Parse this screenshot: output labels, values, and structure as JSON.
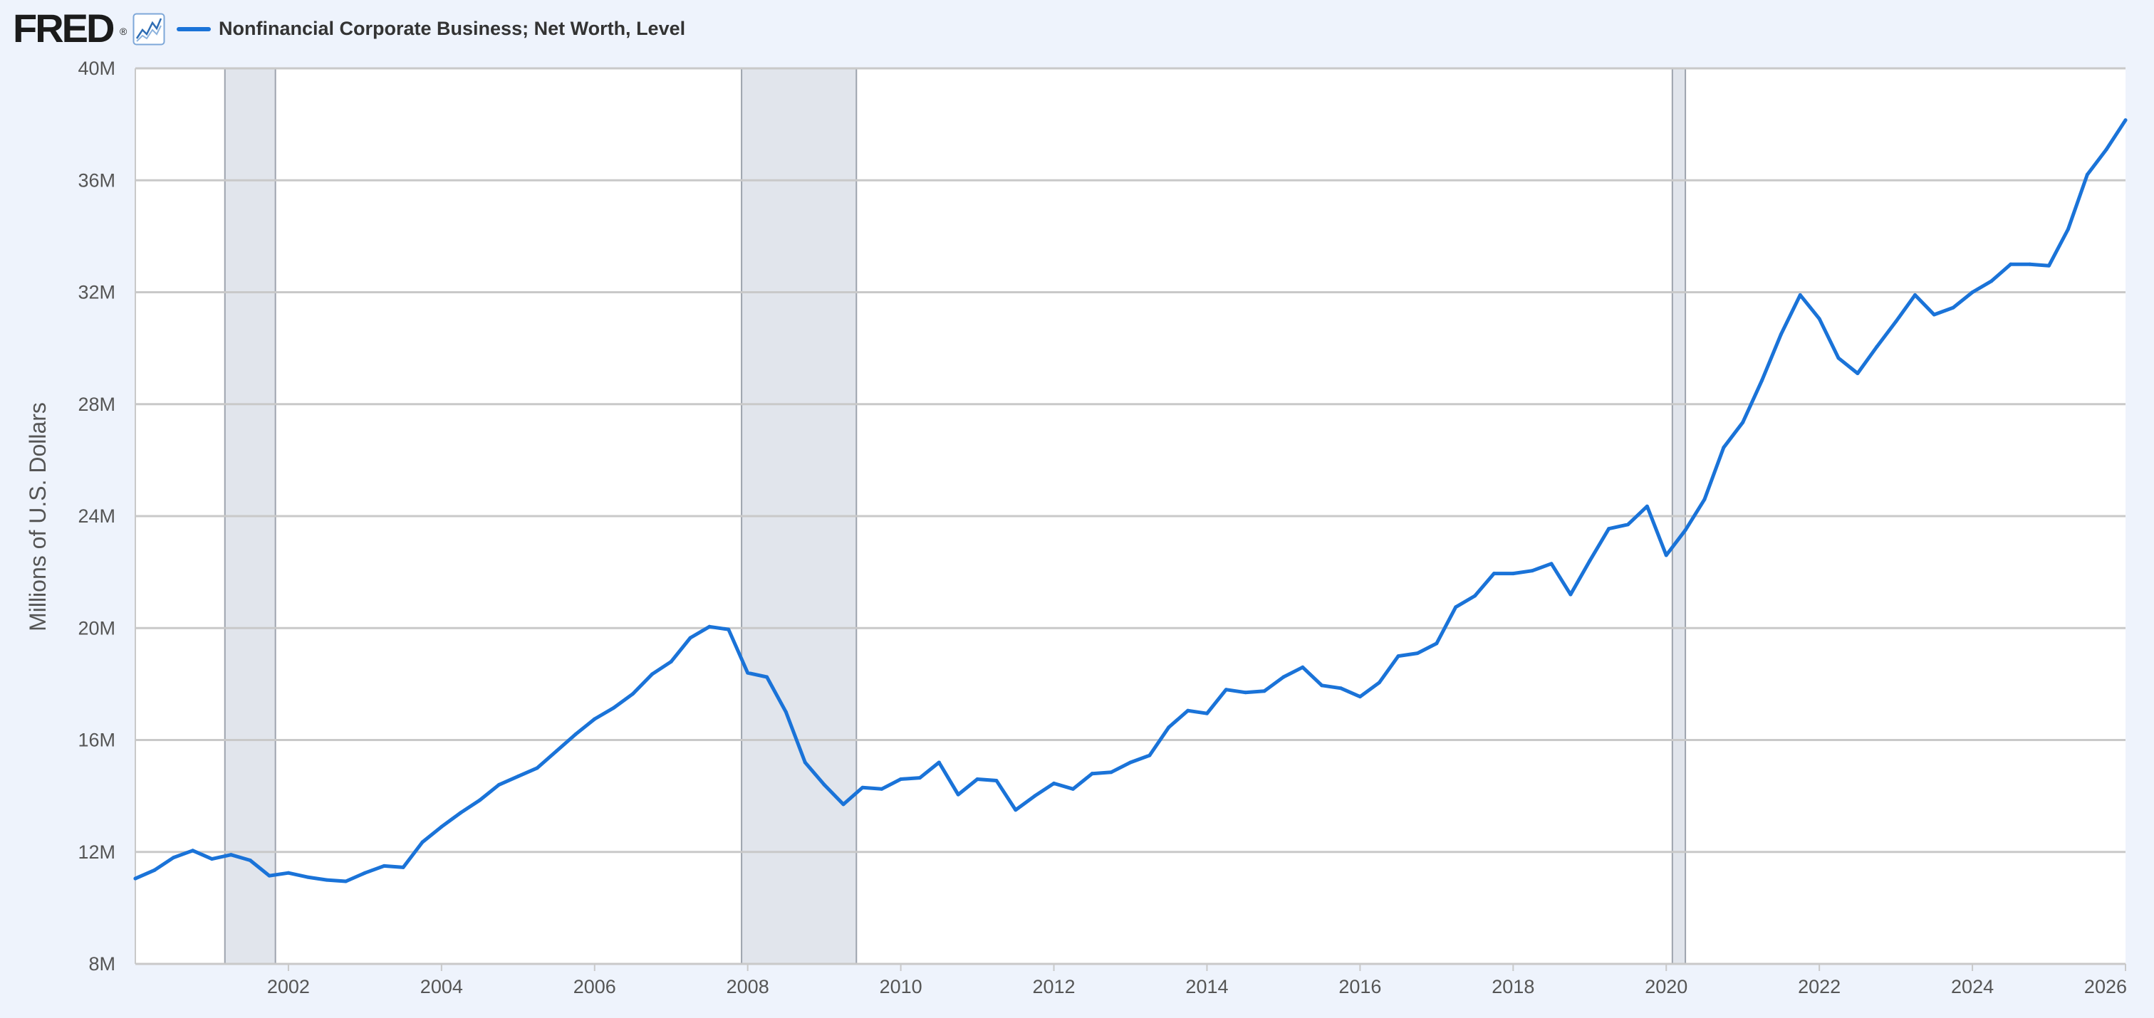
{
  "header": {
    "logo_text": "FRED",
    "logo_reg": "®",
    "logo_icon": "line-chart-icon",
    "series_label": "Nonfinancial Corporate Business; Net Worth, Level"
  },
  "colors": {
    "series": "#1A73D8",
    "recession": "#E1E5EC",
    "recession_border": "#9DA3AD",
    "grid": "#C9C9C9",
    "background": "#EEF3FC"
  },
  "chart_data": {
    "type": "line",
    "title": "",
    "xlabel": "",
    "ylabel": "Millions of U.S. Dollars",
    "xlim": [
      2000.0,
      2026.0
    ],
    "ylim": [
      8,
      40
    ],
    "y_ticks": [
      {
        "value": 8,
        "label": "8M"
      },
      {
        "value": 12,
        "label": "12M"
      },
      {
        "value": 16,
        "label": "16M"
      },
      {
        "value": 20,
        "label": "20M"
      },
      {
        "value": 24,
        "label": "24M"
      },
      {
        "value": 28,
        "label": "28M"
      },
      {
        "value": 32,
        "label": "32M"
      },
      {
        "value": 36,
        "label": "36M"
      },
      {
        "value": 40,
        "label": "40M"
      }
    ],
    "x_ticks": [
      {
        "value": 2002,
        "label": "2002"
      },
      {
        "value": 2004,
        "label": "2004"
      },
      {
        "value": 2006,
        "label": "2006"
      },
      {
        "value": 2008,
        "label": "2008"
      },
      {
        "value": 2010,
        "label": "2010"
      },
      {
        "value": 2012,
        "label": "2012"
      },
      {
        "value": 2014,
        "label": "2014"
      },
      {
        "value": 2016,
        "label": "2016"
      },
      {
        "value": 2018,
        "label": "2018"
      },
      {
        "value": 2020,
        "label": "2020"
      },
      {
        "value": 2022,
        "label": "2022"
      },
      {
        "value": 2024,
        "label": "2024"
      },
      {
        "value": 2026,
        "label": "2026"
      }
    ],
    "grid": true,
    "recessions": [
      {
        "start": 2001.17,
        "end": 2001.83
      },
      {
        "start": 2007.92,
        "end": 2009.42
      },
      {
        "start": 2020.08,
        "end": 2020.25
      }
    ],
    "series": [
      {
        "name": "Nonfinancial Corporate Business; Net Worth, Level",
        "x": [
          2000.0,
          2000.25,
          2000.5,
          2000.75,
          2001.0,
          2001.25,
          2001.5,
          2001.75,
          2002.0,
          2002.25,
          2002.5,
          2002.75,
          2003.0,
          2003.25,
          2003.5,
          2003.75,
          2004.0,
          2004.25,
          2004.5,
          2004.75,
          2005.0,
          2005.25,
          2005.5,
          2005.75,
          2006.0,
          2006.25,
          2006.5,
          2006.75,
          2007.0,
          2007.25,
          2007.5,
          2007.75,
          2008.0,
          2008.25,
          2008.5,
          2008.75,
          2009.0,
          2009.25,
          2009.5,
          2009.75,
          2010.0,
          2010.25,
          2010.5,
          2010.75,
          2011.0,
          2011.25,
          2011.5,
          2011.75,
          2012.0,
          2012.25,
          2012.5,
          2012.75,
          2013.0,
          2013.25,
          2013.5,
          2013.75,
          2014.0,
          2014.25,
          2014.5,
          2014.75,
          2015.0,
          2015.25,
          2015.5,
          2015.75,
          2016.0,
          2016.25,
          2016.5,
          2016.75,
          2017.0,
          2017.25,
          2017.5,
          2017.75,
          2018.0,
          2018.25,
          2018.5,
          2018.75,
          2019.0,
          2019.25,
          2019.5,
          2019.75,
          2020.0,
          2020.25,
          2020.5,
          2020.75,
          2021.0,
          2021.25,
          2021.5,
          2021.75,
          2022.0,
          2022.25,
          2022.5,
          2022.75,
          2023.0,
          2023.25,
          2023.5,
          2023.75,
          2024.0,
          2024.25,
          2024.5,
          2024.75,
          2025.0,
          2025.25,
          2025.5,
          2025.75,
          2026.0
        ],
        "values": [
          11.05,
          11.35,
          11.8,
          12.05,
          11.75,
          11.9,
          11.7,
          11.15,
          11.25,
          11.1,
          11.0,
          10.95,
          11.25,
          11.5,
          11.45,
          12.35,
          12.9,
          13.4,
          13.85,
          14.4,
          14.7,
          15.0,
          15.6,
          16.2,
          16.75,
          17.15,
          17.65,
          18.35,
          18.8,
          19.65,
          20.05,
          19.95,
          18.4,
          18.25,
          17.0,
          15.2,
          14.4,
          13.7,
          14.3,
          14.25,
          14.6,
          14.65,
          15.2,
          14.05,
          14.6,
          14.55,
          13.5,
          14.0,
          14.45,
          14.25,
          14.8,
          14.85,
          15.2,
          15.45,
          16.45,
          17.05,
          16.95,
          17.8,
          17.7,
          17.75,
          18.25,
          18.6,
          17.95,
          17.85,
          17.55,
          18.05,
          19.0,
          19.1,
          19.45,
          20.75,
          21.15,
          21.95,
          21.95,
          22.05,
          22.3,
          21.2,
          22.4,
          23.55,
          23.7,
          24.35,
          22.6,
          23.5,
          24.6,
          26.45,
          27.35,
          28.85,
          30.5,
          31.9,
          31.05,
          29.65,
          29.1,
          30.05,
          30.95,
          31.9,
          31.2,
          31.45,
          32.0,
          32.4,
          33.0,
          33.0,
          32.95,
          34.25,
          36.2,
          37.1,
          38.15
        ]
      }
    ]
  }
}
